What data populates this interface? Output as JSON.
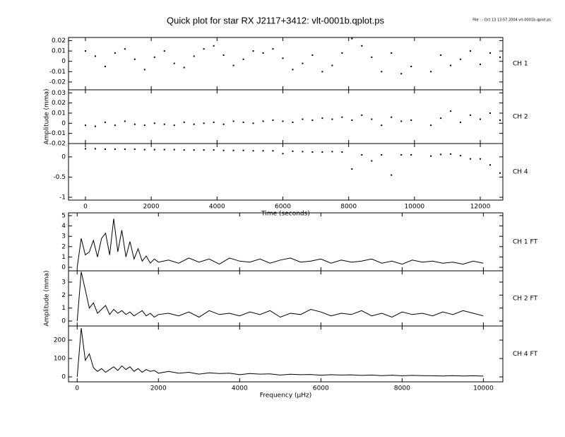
{
  "title": "Quick plot for star RX J2117+3412:  vlt-0001b.qplot.ps",
  "file_note": "File : : Oct 13 13:57 2004  vlt-0001b.qplot.ps",
  "chart_data": [
    {
      "type": "scatter",
      "label": "CH 1",
      "color": "#000000",
      "x": [
        0,
        300,
        600,
        900,
        1200,
        1500,
        1800,
        2100,
        2400,
        2700,
        3000,
        3300,
        3600,
        3900,
        4200,
        4500,
        4800,
        5100,
        5400,
        5700,
        6000,
        6300,
        6600,
        6900,
        7200,
        7500,
        7800,
        8100,
        8400,
        8700,
        9000,
        9300,
        9600,
        9900,
        10500,
        10800,
        11100,
        11400,
        11700,
        12000,
        12300,
        12600
      ],
      "values": [
        0.01,
        0.005,
        -0.005,
        0.008,
        0.012,
        0.002,
        -0.008,
        0.004,
        0.01,
        -0.002,
        -0.006,
        0.005,
        0.012,
        0.015,
        0.006,
        -0.004,
        0.002,
        0.01,
        0.008,
        0.012,
        0.003,
        -0.008,
        -0.002,
        0.006,
        -0.01,
        -0.004,
        0.008,
        0.022,
        0.015,
        0.004,
        -0.01,
        0.008,
        -0.012,
        -0.005,
        -0.01,
        0.006,
        -0.004,
        0.002,
        0.01,
        -0.003,
        0.008,
        0.004
      ],
      "xlim": [
        -514,
        12686
      ],
      "ylim": [
        -0.0276,
        0.0231
      ],
      "yticks": [
        -0.02,
        -0.01,
        0,
        0.01,
        0.02
      ]
    },
    {
      "type": "scatter",
      "label": "CH 2",
      "color": "#000000",
      "ylabel": "Amplitude (mma)",
      "x": [
        0,
        300,
        600,
        900,
        1200,
        1500,
        1800,
        2100,
        2400,
        2700,
        3000,
        3300,
        3600,
        3900,
        4200,
        4500,
        4800,
        5100,
        5400,
        5700,
        6000,
        6300,
        6600,
        6900,
        7200,
        7500,
        7800,
        8100,
        8400,
        8700,
        9000,
        9300,
        9600,
        9900,
        10500,
        10800,
        11100,
        11400,
        11700,
        12000,
        12300,
        12600
      ],
      "values": [
        -0.002,
        -0.003,
        0.001,
        -0.002,
        0.002,
        -0.001,
        -0.002,
        0,
        -0.001,
        -0.002,
        0.001,
        -0.001,
        0,
        0.001,
        -0.001,
        0.002,
        0.001,
        0,
        0.002,
        0.003,
        0.002,
        0.001,
        0.004,
        0.003,
        0.005,
        0.004,
        0.006,
        0.003,
        0.008,
        0.004,
        -0.002,
        0.006,
        0.002,
        0.003,
        -0.002,
        0.005,
        0.012,
        0.001,
        0.008,
        0.004,
        0.01,
        0.003
      ],
      "xlim": [
        -514,
        12686
      ],
      "ylim": [
        -0.02,
        0.033
      ],
      "yticks": [
        -0.02,
        -0.01,
        0,
        0.01,
        0.02,
        0.03
      ]
    },
    {
      "type": "scatter",
      "label": "CH 4",
      "color": "#000000",
      "xlabel": "Time (seconds)",
      "x": [
        0,
        300,
        600,
        900,
        1200,
        1500,
        1800,
        2100,
        2400,
        2700,
        3000,
        3300,
        3600,
        3900,
        4200,
        4500,
        4800,
        5100,
        5400,
        5700,
        6000,
        6300,
        6600,
        6900,
        7200,
        7500,
        7800,
        8100,
        8400,
        8700,
        9000,
        9300,
        9600,
        9900,
        10500,
        10800,
        11100,
        11400,
        11700,
        12000,
        12300,
        12600
      ],
      "values": [
        0.2,
        0.2,
        0.19,
        0.19,
        0.19,
        0.19,
        0.18,
        0.18,
        0.18,
        0.18,
        0.17,
        0.17,
        0.17,
        0.17,
        0.16,
        0.16,
        0.16,
        0.15,
        0.15,
        0.15,
        0.08,
        0.14,
        0.13,
        0.12,
        0.12,
        0.13,
        0.12,
        -0.3,
        0.05,
        -0.1,
        0.05,
        -0.45,
        0.05,
        0.05,
        0.02,
        0.06,
        0.07,
        0.03,
        -0.05,
        -0.05,
        -0.2,
        -0.4
      ],
      "xlim": [
        -514,
        12686
      ],
      "ylim": [
        -1.07,
        0.33
      ],
      "yticks": [
        -1,
        -0.5,
        0
      ],
      "xticks": [
        0,
        2000,
        4000,
        6000,
        8000,
        10000,
        12000
      ]
    },
    {
      "type": "line",
      "label": "CH 1 FT",
      "color": "#000000",
      "x": [
        0,
        100,
        200,
        300,
        400,
        500,
        600,
        700,
        800,
        900,
        1000,
        1100,
        1200,
        1300,
        1400,
        1500,
        1600,
        1700,
        1800,
        1900,
        2000,
        2250,
        2500,
        2750,
        3000,
        3250,
        3500,
        3750,
        4000,
        4250,
        4500,
        4750,
        5000,
        5250,
        5500,
        5750,
        6000,
        6250,
        6500,
        6750,
        7000,
        7250,
        7500,
        7750,
        8000,
        8250,
        8500,
        8750,
        9000,
        9250,
        9500,
        9750,
        10000
      ],
      "values": [
        0,
        2.8,
        1.2,
        1.5,
        2.6,
        1.0,
        2.8,
        3.3,
        1.2,
        4.7,
        1.5,
        3.6,
        1.0,
        2.5,
        0.8,
        1.8,
        0.6,
        1.1,
        0.4,
        0.8,
        0.5,
        0.7,
        0.4,
        0.9,
        0.5,
        0.8,
        0.3,
        0.9,
        0.6,
        0.5,
        0.8,
        0.4,
        0.7,
        0.9,
        0.5,
        0.6,
        0.8,
        0.4,
        0.7,
        0.5,
        0.6,
        0.8,
        0.4,
        0.6,
        0.3,
        0.7,
        0.5,
        0.6,
        0.4,
        0.5,
        0.3,
        0.6,
        0.4
      ],
      "xlim": [
        -213,
        10480
      ],
      "ylim": [
        -0.34,
        5.27
      ],
      "yticks": [
        0,
        1,
        2,
        3,
        4,
        5
      ]
    },
    {
      "type": "line",
      "label": "CH 2 FT",
      "color": "#000000",
      "ylabel": "Amplitude (mma)",
      "x": [
        0,
        100,
        200,
        300,
        400,
        500,
        600,
        700,
        800,
        900,
        1000,
        1100,
        1200,
        1300,
        1400,
        1500,
        1600,
        1700,
        1800,
        1900,
        2000,
        2250,
        2500,
        2750,
        3000,
        3250,
        3500,
        3750,
        4000,
        4250,
        4500,
        4750,
        5000,
        5250,
        5500,
        5750,
        6000,
        6250,
        6500,
        6750,
        7000,
        7250,
        7500,
        7750,
        8000,
        8250,
        8500,
        8750,
        9000,
        9250,
        9500,
        9750,
        10000
      ],
      "values": [
        0,
        3.8,
        2.4,
        1.0,
        1.4,
        0.6,
        0.9,
        1.2,
        0.5,
        0.9,
        0.6,
        0.8,
        0.5,
        0.7,
        0.4,
        0.6,
        0.8,
        0.4,
        0.6,
        0.3,
        0.5,
        0.6,
        0.4,
        0.7,
        0.3,
        0.8,
        0.5,
        0.6,
        0.4,
        0.7,
        0.5,
        0.8,
        0.3,
        0.6,
        0.5,
        0.9,
        0.7,
        0.4,
        0.6,
        0.5,
        0.8,
        0.4,
        0.6,
        0.3,
        0.7,
        0.5,
        0.6,
        0.4,
        0.7,
        0.5,
        0.8,
        0.6,
        0.4
      ],
      "xlim": [
        -213,
        10480
      ],
      "ylim": [
        -0.38,
        3.87
      ],
      "yticks": [
        0,
        1,
        2,
        3
      ]
    },
    {
      "type": "line",
      "label": "CH 4 FT",
      "color": "#000000",
      "xlabel": "Frequency (μHz)",
      "x": [
        0,
        100,
        200,
        300,
        400,
        500,
        600,
        700,
        800,
        900,
        1000,
        1100,
        1200,
        1300,
        1400,
        1500,
        1600,
        1700,
        1800,
        1900,
        2000,
        2250,
        2500,
        2750,
        3000,
        3250,
        3500,
        3750,
        4000,
        4250,
        4500,
        4750,
        5000,
        5250,
        5500,
        5750,
        6000,
        6250,
        6500,
        6750,
        7000,
        7250,
        7500,
        7750,
        8000,
        8250,
        8500,
        8750,
        9000,
        9250,
        9500,
        9750,
        10000
      ],
      "values": [
        0,
        265,
        90,
        125,
        50,
        30,
        45,
        25,
        40,
        55,
        35,
        60,
        40,
        55,
        30,
        45,
        25,
        40,
        30,
        35,
        20,
        30,
        20,
        25,
        15,
        22,
        18,
        20,
        12,
        18,
        15,
        16,
        10,
        14,
        12,
        13,
        9,
        12,
        10,
        11,
        8,
        10,
        7,
        9,
        6,
        8,
        7,
        6,
        5,
        7,
        5,
        6,
        4
      ],
      "xlim": [
        -213,
        10480
      ],
      "ylim": [
        -27,
        277
      ],
      "yticks": [
        0,
        100,
        200
      ],
      "xticks": [
        0,
        2000,
        4000,
        6000,
        8000,
        10000
      ]
    }
  ]
}
